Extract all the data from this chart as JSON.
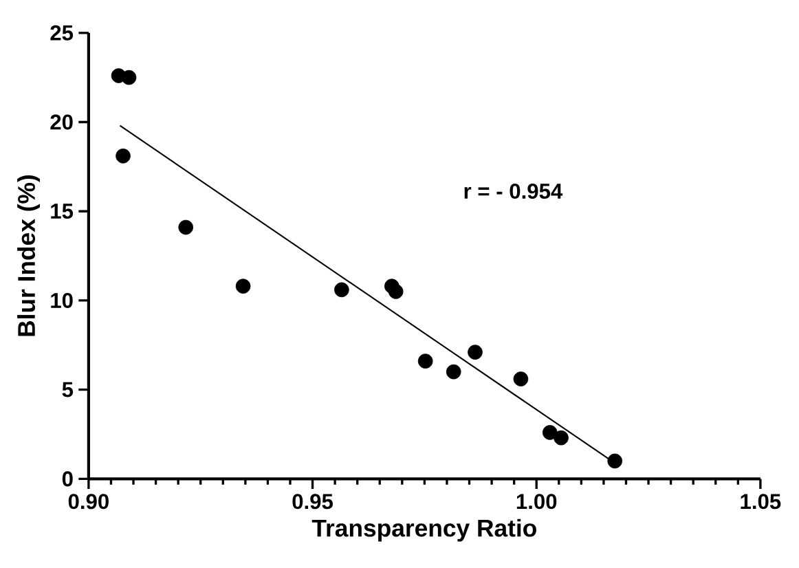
{
  "chart_data": {
    "type": "scatter",
    "xlabel": "Transparency Ratio",
    "ylabel": "Blur Index (%)",
    "xlim": [
      0.9,
      1.05
    ],
    "ylim": [
      0,
      25
    ],
    "xticks": [
      {
        "value": 0.9,
        "label": "0.90"
      },
      {
        "value": 0.95,
        "label": "0.95"
      },
      {
        "value": 1.0,
        "label": "1.00"
      },
      {
        "value": 1.05,
        "label": "1.05"
      }
    ],
    "yticks": [
      0,
      5,
      10,
      15,
      20,
      25
    ],
    "marker": "circle",
    "grid": false,
    "annotations": [
      "r = - 0.954"
    ],
    "series": [
      {
        "color": "#000000",
        "x": [
          0.9067,
          0.909,
          0.9077,
          0.9217,
          0.9345,
          0.9565,
          0.9677,
          0.9686,
          0.9752,
          0.9815,
          0.9863,
          0.9965,
          1.003,
          1.0055,
          1.0175
        ],
        "values": [
          22.6,
          22.5,
          18.1,
          14.1,
          10.8,
          10.6,
          10.8,
          10.5,
          6.6,
          6.0,
          7.1,
          5.6,
          2.6,
          2.3,
          1.0
        ]
      },
      {
        "type": "line",
        "marker": "none",
        "color": "#000000",
        "x": [
          0.907,
          1.018
        ],
        "values": [
          19.8,
          0.8
        ]
      }
    ]
  }
}
